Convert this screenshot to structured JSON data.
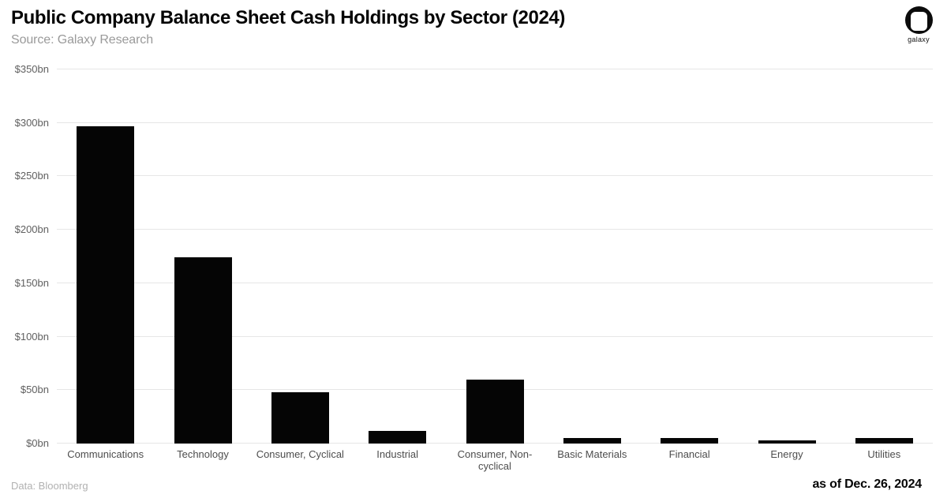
{
  "header": {
    "source": "Source: Galaxy Research",
    "logo_text": "galaxy"
  },
  "chart_data": {
    "type": "bar",
    "title": "Public Company Balance Sheet Cash Holdings by Sector (2024)",
    "categories": [
      "Communications",
      "Technology",
      "Consumer, Cyclical",
      "Industrial",
      "Consumer, Non-cyclical",
      "Basic Materials",
      "Financial",
      "Energy",
      "Utilities"
    ],
    "values": [
      297,
      174,
      48,
      12,
      60,
      5,
      5,
      3,
      5
    ],
    "unit": "$bn",
    "xlabel": "",
    "ylabel": "",
    "ylim": [
      0,
      350
    ],
    "yticks": [
      {
        "value": 0,
        "label": "$0bn"
      },
      {
        "value": 50,
        "label": "$50bn"
      },
      {
        "value": 100,
        "label": "$100bn"
      },
      {
        "value": 150,
        "label": "$150bn"
      },
      {
        "value": 200,
        "label": "$200bn"
      },
      {
        "value": 250,
        "label": "$250bn"
      },
      {
        "value": 300,
        "label": "$300bn"
      },
      {
        "value": 350,
        "label": "$350bn"
      }
    ],
    "grid": true,
    "legend": false
  },
  "colors": {
    "bar": "#050505",
    "gridline": "#e6e6e6",
    "axis_text": "#4d4d4d",
    "ytick_text": "#606060",
    "title": "#050505",
    "subtitle": "#9a9a9a",
    "footer_note": "#b1b1b1",
    "background": "#ffffff"
  },
  "footer": {
    "data_note": "Data: Bloomberg",
    "as_of": "as of Dec. 26, 2024"
  }
}
